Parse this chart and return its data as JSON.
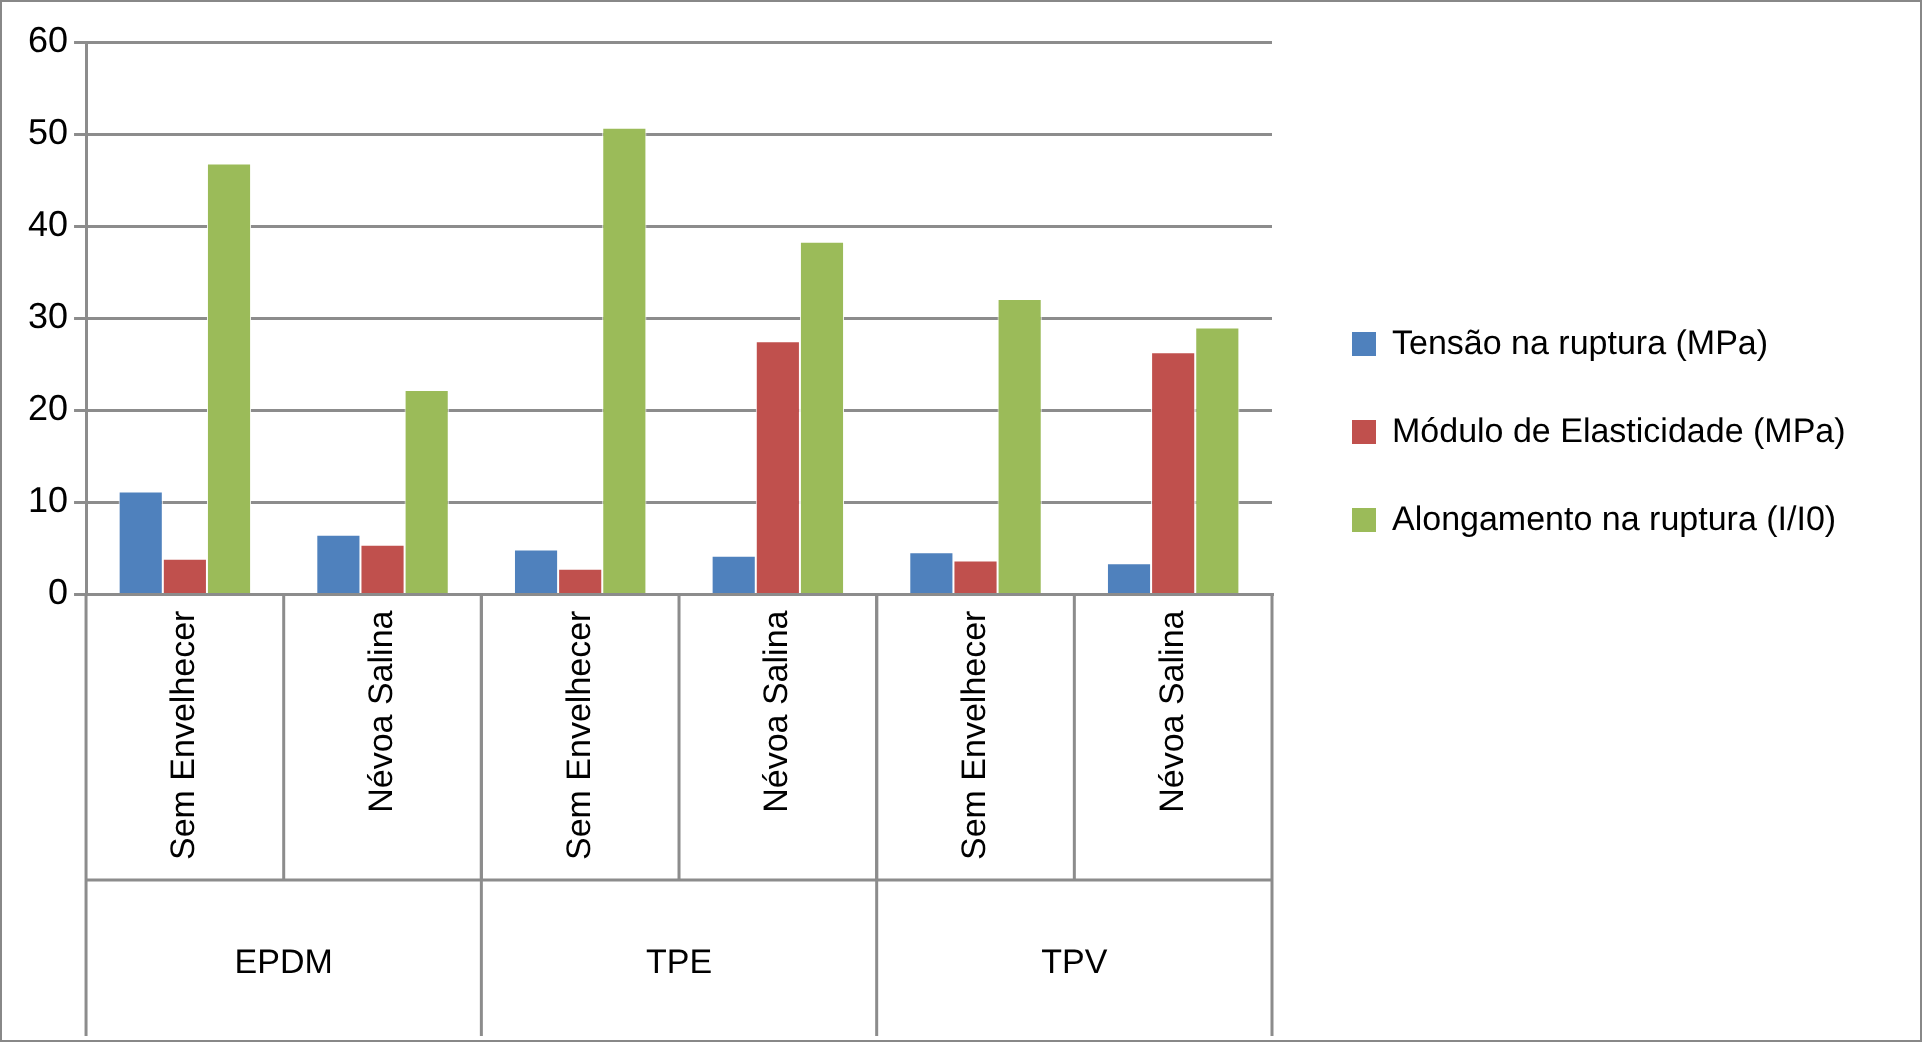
{
  "chart_data": {
    "type": "bar",
    "categories": [
      "Sem Envelhecer",
      "Névoa Salina",
      "Sem Envelhecer",
      "Névoa Salina",
      "Sem Envelhecer",
      "Névoa Salina"
    ],
    "series": [
      {
        "name": "Tensão na ruptura (MPa)",
        "color": "#4f81bd",
        "values": [
          11.2,
          6.5,
          4.9,
          4.2,
          4.6,
          3.4
        ]
      },
      {
        "name": "Módulo de Elasticidade (MPa)",
        "color": "#c0504d",
        "values": [
          3.9,
          5.4,
          2.8,
          27.5,
          3.7,
          26.3
        ]
      },
      {
        "name": "Alongamento na ruptura (I/I0)",
        "color": "#9bbb59",
        "values": [
          46.8,
          22.2,
          50.7,
          38.3,
          32.1,
          29.0
        ]
      }
    ],
    "ylim": [
      0,
      60
    ],
    "yticks": [
      0,
      10,
      20,
      30,
      40,
      50,
      60
    ],
    "grid": "y",
    "legend": "right",
    "annotations": [
      "EPDM",
      "TPE",
      "TPV"
    ]
  }
}
